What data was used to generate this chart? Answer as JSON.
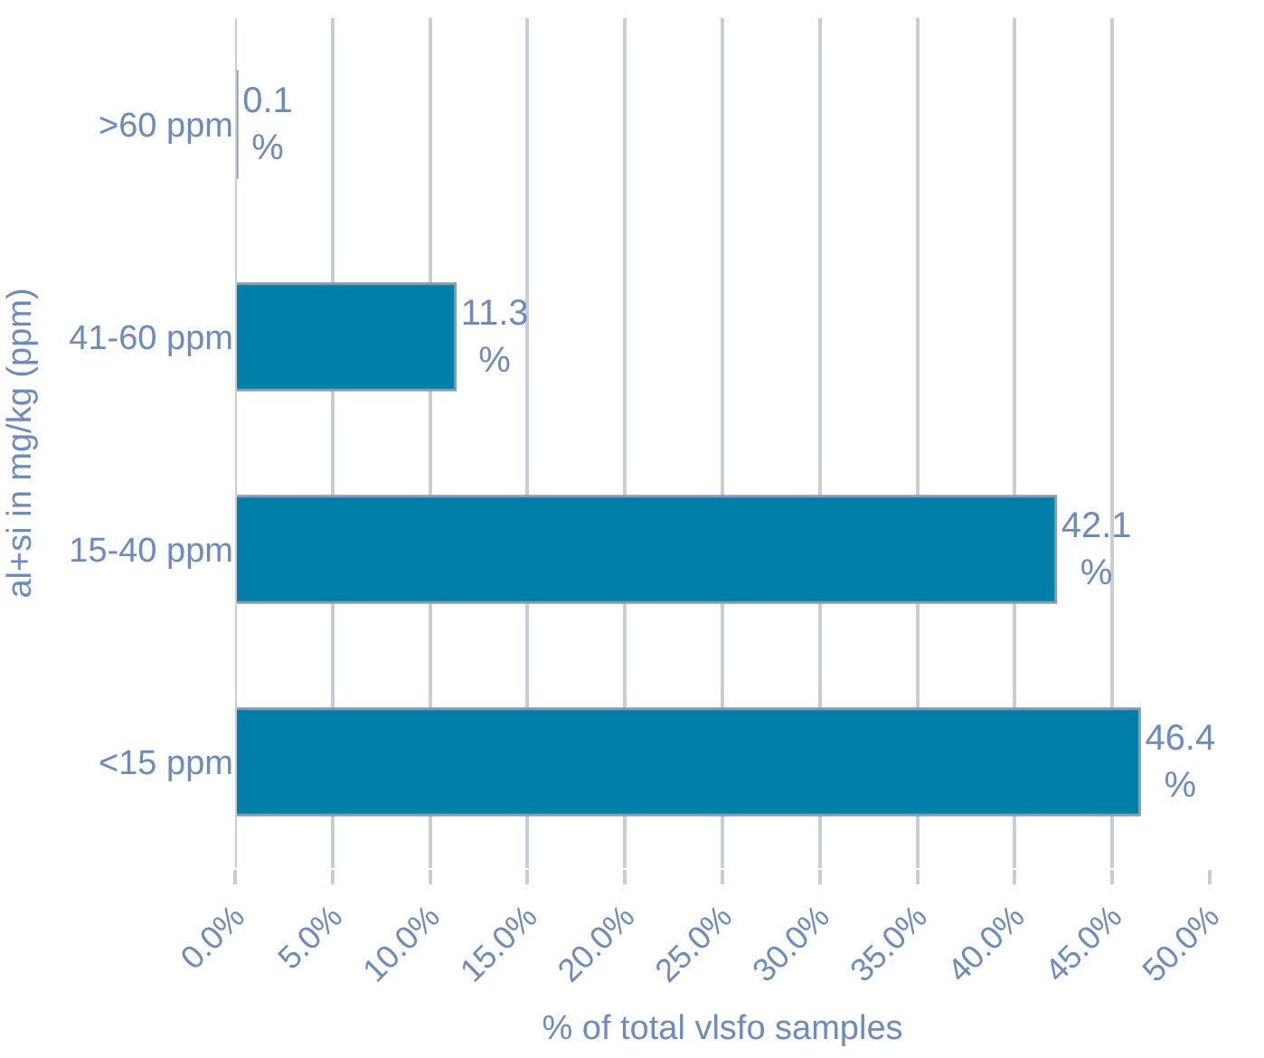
{
  "chart_data": {
    "type": "bar",
    "orientation": "horizontal",
    "xlabel": "% of total vlsfo samples",
    "ylabel": "al+si in mg/kg (ppm)",
    "categories": [
      ">60 ppm",
      "41-60 ppm",
      "15-40 ppm",
      "<15 ppm"
    ],
    "values": [
      0.1,
      11.3,
      42.1,
      46.4
    ],
    "value_labels": [
      "0.1 %",
      "11.3 %",
      "42.1 %",
      "46.4 %"
    ],
    "color": "#0080a8",
    "xlim": [
      0,
      50
    ],
    "xticks": [
      {
        "value": 0,
        "label": "0.0%"
      },
      {
        "value": 5,
        "label": "5.0%"
      },
      {
        "value": 10,
        "label": "10.0%"
      },
      {
        "value": 15,
        "label": "15.0%"
      },
      {
        "value": 20,
        "label": "20.0%"
      },
      {
        "value": 25,
        "label": "25.0%"
      },
      {
        "value": 30,
        "label": "30.0%"
      },
      {
        "value": 35,
        "label": "35.0%"
      },
      {
        "value": 40,
        "label": "40.0%"
      },
      {
        "value": 45,
        "label": "45.0%"
      },
      {
        "value": 50,
        "label": "50.0%"
      }
    ],
    "grid": "x",
    "legend": false
  }
}
